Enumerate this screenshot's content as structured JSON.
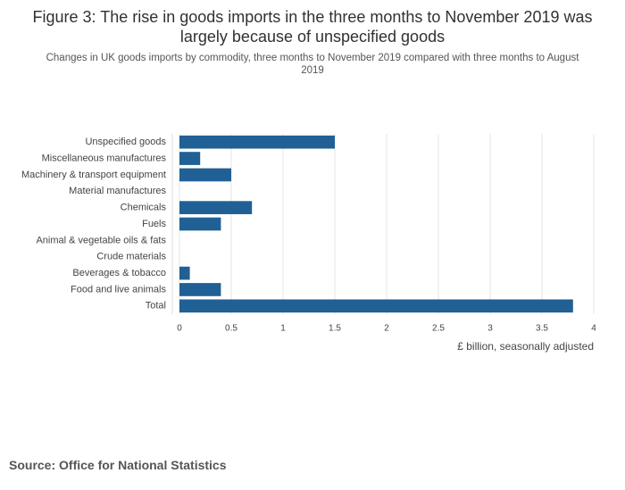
{
  "chart_data": {
    "type": "bar",
    "orientation": "horizontal",
    "title": "Figure 3: The rise in goods imports in the three months to November 2019 was largely because of unspecified goods",
    "subtitle": "Changes in UK goods imports by commodity, three months to November 2019 compared with three months to August 2019",
    "x_label": "£ billion, seasonally adjusted",
    "categories": [
      "Unspecified goods",
      "Miscellaneous manufactures",
      "Machinery & transport equipment",
      "Material manufactures",
      "Chemicals",
      "Fuels",
      "Animal & vegetable oils & fats",
      "Crude materials",
      "Beverages & tobacco",
      "Food and live animals",
      "Total"
    ],
    "values": [
      1.5,
      0.2,
      0.5,
      0,
      0.7,
      0.4,
      0,
      0,
      0.1,
      0.4,
      3.8
    ],
    "color": "#206095",
    "xlim": [
      0,
      4
    ],
    "xticks": [
      0,
      0.5,
      1,
      1.5,
      2,
      2.5,
      3,
      3.5,
      4
    ],
    "grid": true
  },
  "source": "Source: Office for National Statistics"
}
